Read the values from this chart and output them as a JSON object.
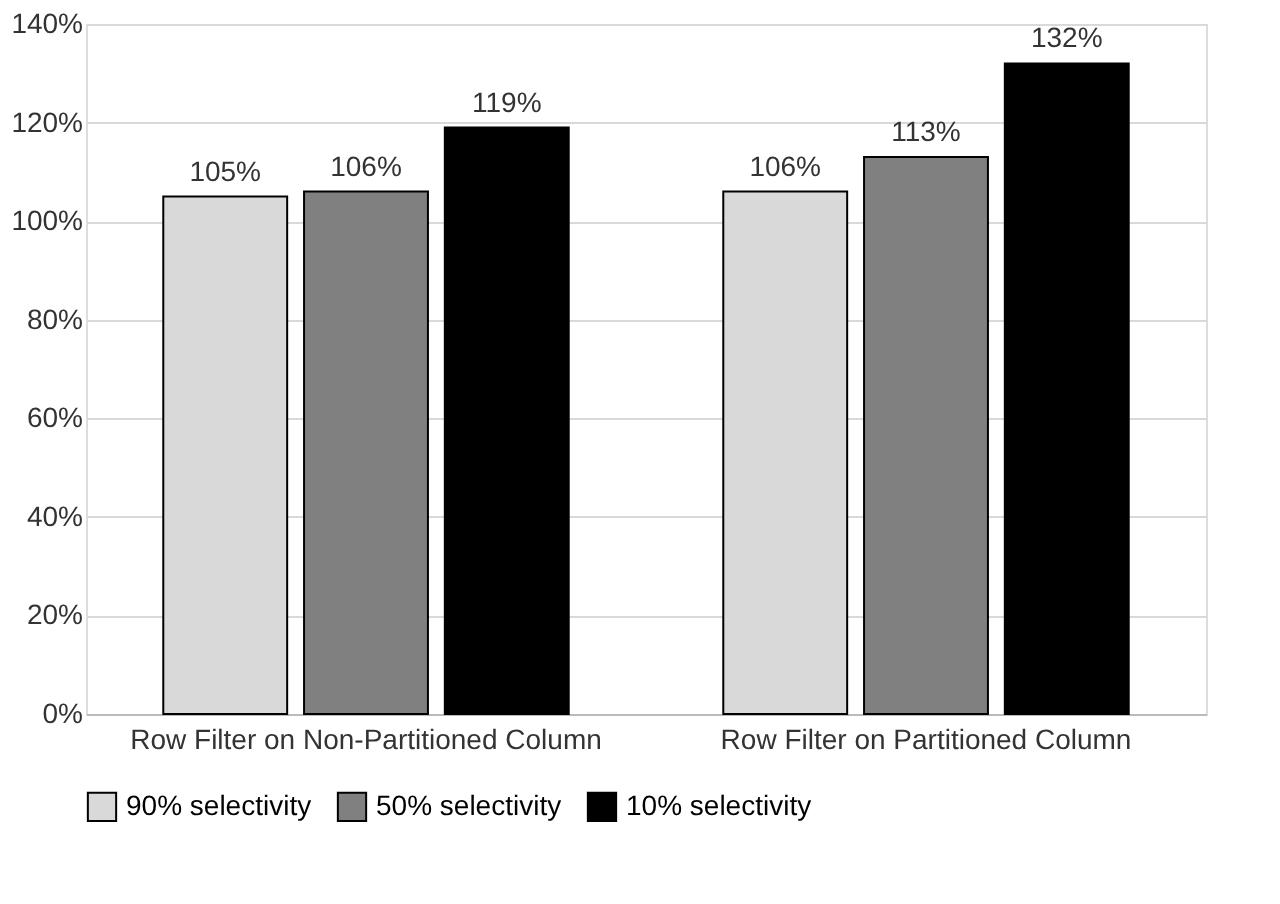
{
  "chart_data": {
    "type": "bar",
    "categories": [
      "Row Filter on Non-Partitioned Column",
      "Row Filter on Partitioned Column"
    ],
    "series": [
      {
        "name": "90% selectivity",
        "color": "#d9d9d9",
        "values": [
          105,
          106
        ],
        "value_labels": [
          "105%",
          "106%"
        ]
      },
      {
        "name": "50% selectivity",
        "color": "#808080",
        "values": [
          106,
          113
        ],
        "value_labels": [
          "106%",
          "113%"
        ]
      },
      {
        "name": "10% selectivity",
        "color": "#000000",
        "values": [
          119,
          132
        ],
        "value_labels": [
          "119%",
          "132%"
        ]
      }
    ],
    "ylim": [
      0,
      140
    ],
    "yticks": [
      {
        "value": 0,
        "label": "0%"
      },
      {
        "value": 20,
        "label": "20%"
      },
      {
        "value": 40,
        "label": "40%"
      },
      {
        "value": 60,
        "label": "60%"
      },
      {
        "value": 80,
        "label": "80%"
      },
      {
        "value": 100,
        "label": "100%"
      },
      {
        "value": 120,
        "label": "120%"
      },
      {
        "value": 140,
        "label": "140%"
      }
    ],
    "grid": "y",
    "legend": "bottom"
  }
}
